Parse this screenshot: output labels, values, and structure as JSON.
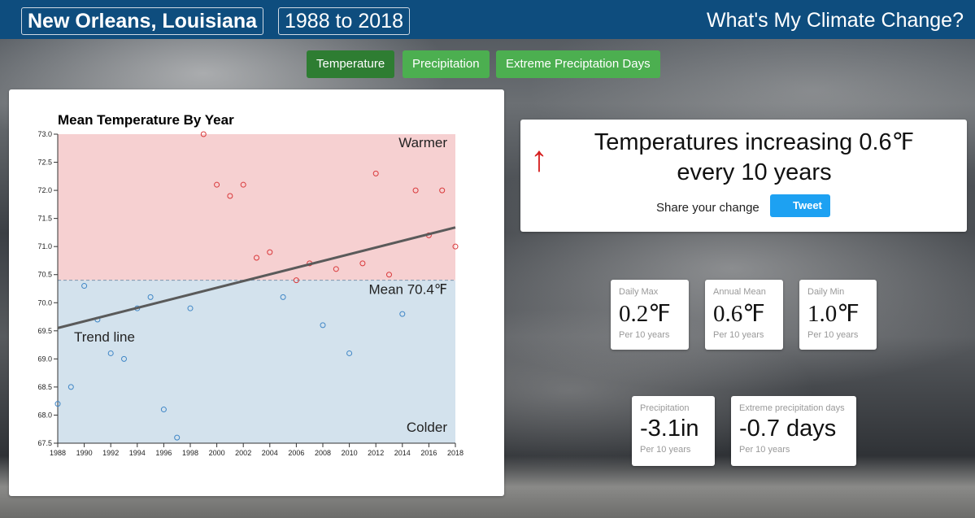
{
  "header": {
    "location": "New Orleans, Louisiana",
    "period": "1988 to 2018",
    "site_title": "What's My Climate Change?"
  },
  "tabs": [
    "Temperature",
    "Precipitation",
    "Extreme Preciptation Days"
  ],
  "chart_data": {
    "type": "scatter",
    "title": "Mean Temperature By Year",
    "x": [
      1988,
      1989,
      1990,
      1991,
      1992,
      1993,
      1994,
      1995,
      1996,
      1997,
      1998,
      1999,
      2000,
      2001,
      2002,
      2003,
      2004,
      2005,
      2006,
      2007,
      2008,
      2009,
      2010,
      2011,
      2012,
      2013,
      2014,
      2015,
      2016,
      2017,
      2018
    ],
    "values": [
      68.2,
      68.5,
      70.3,
      69.7,
      69.1,
      69.0,
      69.9,
      70.1,
      68.1,
      67.6,
      69.9,
      73.0,
      72.1,
      71.9,
      72.1,
      70.8,
      70.9,
      70.1,
      70.4,
      70.7,
      69.6,
      70.6,
      69.1,
      70.7,
      72.3,
      70.5,
      69.8,
      72.0,
      71.2,
      72.0,
      71.0
    ],
    "above_color": "#d9383a",
    "below_color": "#3f86c6",
    "above_region": {
      "label": "Warmer",
      "color": "#f6d0d1"
    },
    "below_region": {
      "label": "Colder",
      "color": "#d3e2ed"
    },
    "mean": {
      "value": 70.4,
      "label": "Mean 70.4℉"
    },
    "trend": {
      "label": "Trend line",
      "start": 69.55,
      "end": 71.34,
      "color": "#5a5a5a"
    },
    "xlim": [
      1988,
      2018
    ],
    "xticks": [
      1988,
      1990,
      1992,
      1994,
      1996,
      1998,
      2000,
      2002,
      2004,
      2006,
      2008,
      2010,
      2012,
      2014,
      2016,
      2018
    ],
    "ylim": [
      67.5,
      73.0
    ],
    "yticks": [
      {
        "value": 73,
        "label": "73.0"
      },
      72.5,
      {
        "value": 72,
        "label": "72.0"
      },
      71.5,
      {
        "value": 71,
        "label": "71.0"
      },
      70.5,
      {
        "value": 70,
        "label": "70.0"
      },
      69.5,
      {
        "value": 69,
        "label": "69.0"
      },
      68.5,
      {
        "value": 68,
        "label": "68.0"
      },
      67.5
    ]
  },
  "headline": {
    "text": "Temperatures increasing 0.6℉ every 10 years",
    "share": "Share your change",
    "button": "Tweet"
  },
  "stats": [
    {
      "label": "Daily Max",
      "value": "0.2℉",
      "unit": "Per 10 years"
    },
    {
      "label": "Annual Mean",
      "value": "0.6℉",
      "unit": "Per 10 years"
    },
    {
      "label": "Daily Min",
      "value": "1.0℉",
      "unit": "Per 10 years"
    },
    {
      "label": "Precipitation",
      "value": "-3.1in",
      "unit": "Per 10 years"
    },
    {
      "label": "Extreme precipitation days",
      "value": "-0.7 days",
      "unit": "Per 10 years"
    }
  ]
}
